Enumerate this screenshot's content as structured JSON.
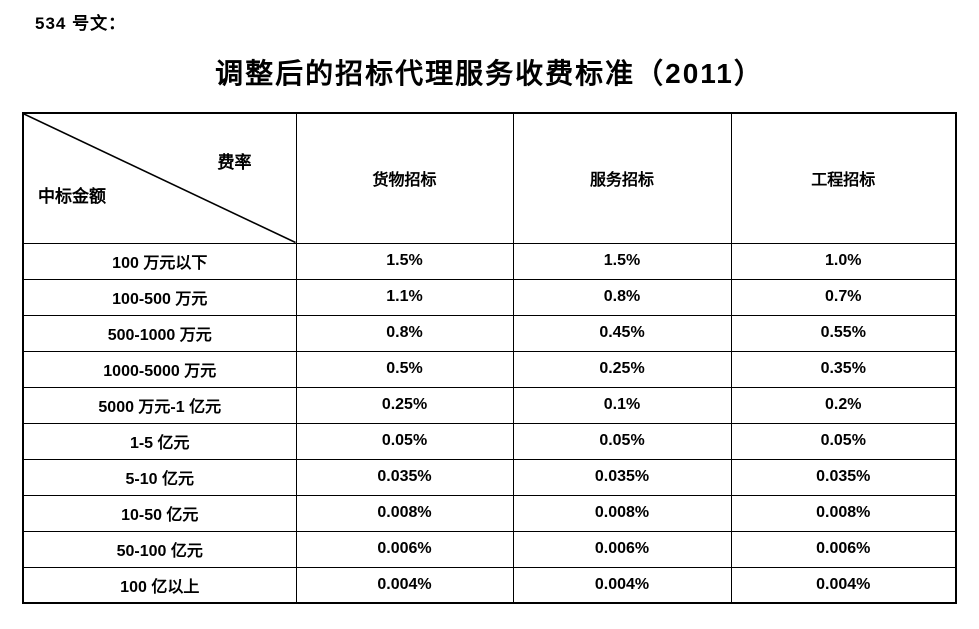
{
  "doc_label": "534 号文：",
  "title": "调整后的招标代理服务收费标准（2011）",
  "table": {
    "corner": {
      "top_label": "费率",
      "bottom_label": "中标金额"
    },
    "columns": [
      "货物招标",
      "服务招标",
      "工程招标"
    ],
    "rows": [
      {
        "label": "100 万元以下",
        "values": [
          "1.5%",
          "1.5%",
          "1.0%"
        ]
      },
      {
        "label": "100-500 万元",
        "values": [
          "1.1%",
          "0.8%",
          "0.7%"
        ]
      },
      {
        "label": "500-1000 万元",
        "values": [
          "0.8%",
          "0.45%",
          "0.55%"
        ]
      },
      {
        "label": "1000-5000 万元",
        "values": [
          "0.5%",
          "0.25%",
          "0.35%"
        ]
      },
      {
        "label": "5000 万元-1 亿元",
        "values": [
          "0.25%",
          "0.1%",
          "0.2%"
        ]
      },
      {
        "label": "1-5 亿元",
        "values": [
          "0.05%",
          "0.05%",
          "0.05%"
        ]
      },
      {
        "label": "5-10 亿元",
        "values": [
          "0.035%",
          "0.035%",
          "0.035%"
        ]
      },
      {
        "label": "10-50 亿元",
        "values": [
          "0.008%",
          "0.008%",
          "0.008%"
        ]
      },
      {
        "label": "50-100 亿元",
        "values": [
          "0.006%",
          "0.006%",
          "0.006%"
        ]
      },
      {
        "label": "100 亿以上",
        "values": [
          "0.004%",
          "0.004%",
          "0.004%"
        ]
      }
    ]
  },
  "colors": {
    "text": "#000000",
    "border": "#000000",
    "background": "#ffffff"
  }
}
